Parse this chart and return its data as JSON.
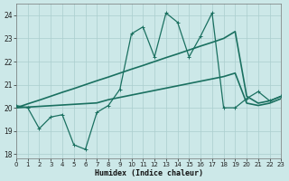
{
  "xlabel": "Humidex (Indice chaleur)",
  "background_color": "#cce8e8",
  "grid_color": "#aacece",
  "line_color": "#1a7060",
  "xlim": [
    0,
    23
  ],
  "ylim": [
    17.8,
    24.5
  ],
  "xticks": [
    0,
    1,
    2,
    3,
    4,
    5,
    6,
    7,
    8,
    9,
    10,
    11,
    12,
    13,
    14,
    15,
    16,
    17,
    18,
    19,
    20,
    21,
    22,
    23
  ],
  "yticks": [
    18,
    19,
    20,
    21,
    22,
    23,
    24
  ],
  "series_noisy": {
    "x": [
      0,
      1,
      2,
      3,
      4,
      5,
      6,
      7,
      8,
      9,
      10,
      11,
      12,
      13,
      14,
      15,
      16,
      17,
      18,
      19,
      20,
      21,
      22,
      23
    ],
    "y": [
      20.1,
      20.0,
      19.1,
      19.6,
      19.7,
      18.4,
      18.2,
      19.8,
      20.1,
      20.8,
      23.2,
      23.5,
      22.2,
      24.1,
      23.7,
      22.2,
      23.1,
      24.1,
      20.0,
      20.0,
      20.4,
      20.7,
      20.3,
      20.5
    ]
  },
  "series_trend1": {
    "x": [
      0,
      1,
      2,
      3,
      4,
      5,
      6,
      7,
      8,
      9,
      10,
      11,
      12,
      13,
      14,
      15,
      16,
      17,
      18,
      19,
      20,
      21,
      22,
      23
    ],
    "y": [
      20.0,
      20.17,
      20.33,
      20.5,
      20.67,
      20.83,
      21.0,
      21.17,
      21.33,
      21.5,
      21.67,
      21.83,
      22.0,
      22.17,
      22.33,
      22.5,
      22.67,
      22.83,
      23.0,
      23.3,
      20.5,
      20.2,
      20.3,
      20.5
    ]
  },
  "series_trend2": {
    "x": [
      0,
      1,
      2,
      3,
      4,
      5,
      6,
      7,
      8,
      9,
      10,
      11,
      12,
      13,
      14,
      15,
      16,
      17,
      18,
      19,
      20,
      21,
      22,
      23
    ],
    "y": [
      20.0,
      20.03,
      20.06,
      20.09,
      20.12,
      20.15,
      20.18,
      20.21,
      20.35,
      20.45,
      20.55,
      20.65,
      20.75,
      20.85,
      20.95,
      21.05,
      21.15,
      21.25,
      21.35,
      21.5,
      20.2,
      20.1,
      20.2,
      20.4
    ]
  }
}
